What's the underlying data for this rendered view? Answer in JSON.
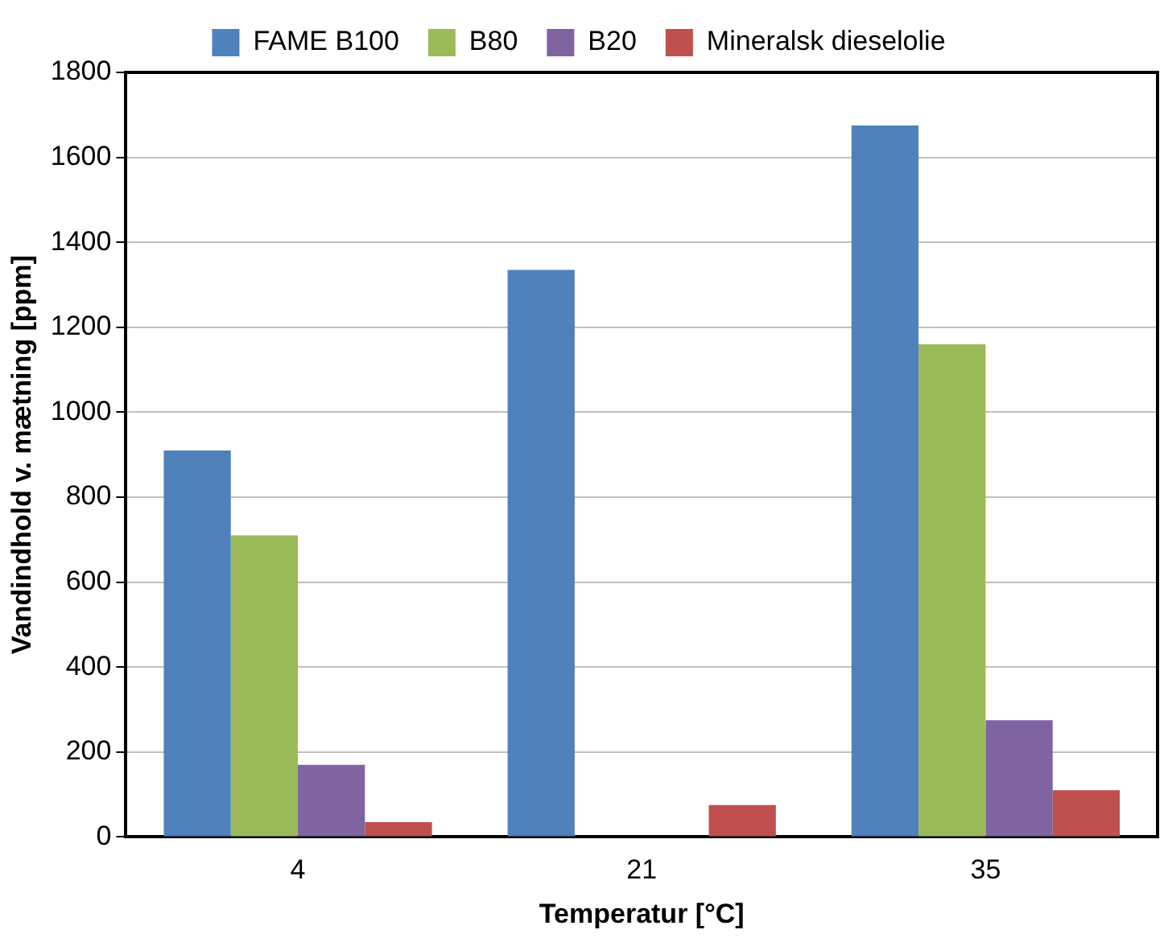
{
  "chart_data": {
    "type": "bar",
    "xlabel": "Temperatur [°C]",
    "ylabel": "Vandindhold v. mætning [ppm]",
    "categories": [
      "4",
      "21",
      "35"
    ],
    "series": [
      {
        "name": "FAME B100",
        "color": "#4f81bd",
        "values": [
          910,
          1335,
          1675
        ]
      },
      {
        "name": "B80",
        "color": "#9bbb59",
        "values": [
          710,
          null,
          1160
        ]
      },
      {
        "name": "B20",
        "color": "#8064a2",
        "values": [
          170,
          null,
          275
        ]
      },
      {
        "name": "Mineralsk dieselolie",
        "color": "#c0504d",
        "values": [
          35,
          75,
          110
        ]
      }
    ],
    "ylim": [
      0,
      1800
    ],
    "yticks": [
      0,
      200,
      400,
      600,
      800,
      1000,
      1200,
      1400,
      1600,
      1800
    ],
    "grid": "y",
    "legend": "top"
  }
}
